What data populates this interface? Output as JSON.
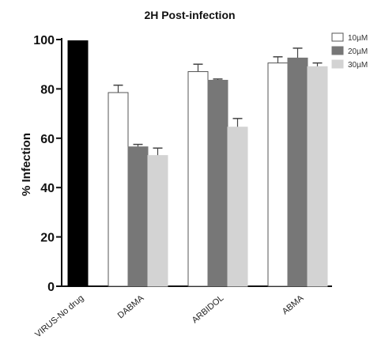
{
  "chart_data": {
    "type": "bar",
    "title": "2H Post-infection",
    "ylabel": "% Infection",
    "xlabel": "",
    "ylim": [
      0,
      100
    ],
    "yticks": [
      0,
      20,
      40,
      60,
      80,
      100
    ],
    "legend_position": "top-right",
    "grid": false,
    "control": {
      "category": "VIRUS-No drug",
      "value": 99.5,
      "color": "#000000"
    },
    "categories": [
      "DABMA",
      "ARBIDOL",
      "ABMA"
    ],
    "series": [
      {
        "name": "10µM",
        "color": "#ffffff",
        "values": [
          78.5,
          87.0,
          90.5
        ],
        "errors": [
          3.0,
          3.0,
          2.5
        ]
      },
      {
        "name": "20µM",
        "color": "#777777",
        "values": [
          56.5,
          83.5,
          92.5
        ],
        "errors": [
          1.0,
          0.5,
          4.0
        ]
      },
      {
        "name": "30µM",
        "color": "#d3d3d3",
        "values": [
          53.0,
          64.5,
          89.0
        ],
        "errors": [
          3.0,
          3.5,
          1.5
        ]
      }
    ]
  }
}
